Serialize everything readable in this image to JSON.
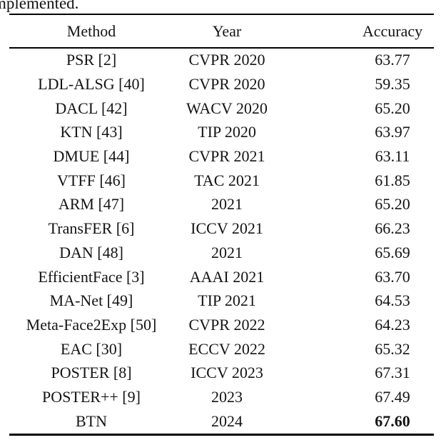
{
  "caption_fragment": "mplemented.",
  "colors": {
    "text": "#141414",
    "background": "#ffffff",
    "rule": "#000000"
  },
  "table": {
    "columns": [
      "Method",
      "Year",
      "Accuracy"
    ],
    "rows": [
      {
        "method": "PSR [2]",
        "year": "CVPR 2020",
        "accuracy": "63.77",
        "accuracy_bold": false
      },
      {
        "method": "LDL-ALSG [40]",
        "year": "CVPR 2020",
        "accuracy": "59.35",
        "accuracy_bold": false
      },
      {
        "method": "DACL [42]",
        "year": "WACV 2020",
        "accuracy": "65.20",
        "accuracy_bold": false
      },
      {
        "method": "KTN [43]",
        "year": "TIP 2020",
        "accuracy": "63.97",
        "accuracy_bold": false
      },
      {
        "method": "DMUE [44]",
        "year": "CVPR 2021",
        "accuracy": "63.11",
        "accuracy_bold": false
      },
      {
        "method": "VTFF [46]",
        "year": "TAC 2021",
        "accuracy": "61.85",
        "accuracy_bold": false
      },
      {
        "method": "ARM [47]",
        "year": "2021",
        "accuracy": "65.20",
        "accuracy_bold": false
      },
      {
        "method": "TransFER [6]",
        "year": "ICCV 2021",
        "accuracy": "66.23",
        "accuracy_bold": false
      },
      {
        "method": "DAN [48]",
        "year": "2021",
        "accuracy": "65.69",
        "accuracy_bold": false
      },
      {
        "method": "EfficientFace [3]",
        "year": "AAAI 2021",
        "accuracy": "63.70",
        "accuracy_bold": false
      },
      {
        "method": "MA-Net [49]",
        "year": "TIP 2021",
        "accuracy": "64.53",
        "accuracy_bold": false
      },
      {
        "method": "Meta-Face2Exp [50]",
        "year": "CVPR 2022",
        "accuracy": "64.23",
        "accuracy_bold": false
      },
      {
        "method": "EAC [30]",
        "year": "ECCV 2022",
        "accuracy": "65.32",
        "accuracy_bold": false
      },
      {
        "method": "POSTER [8]",
        "year": "ICCV 2023",
        "accuracy": "67.31",
        "accuracy_bold": false
      },
      {
        "method": "POSTER++ [9]",
        "year": "2023",
        "accuracy": "67.49",
        "accuracy_bold": false
      },
      {
        "method": "BTN",
        "year": "2024",
        "accuracy": "67.60",
        "accuracy_bold": true
      }
    ]
  }
}
